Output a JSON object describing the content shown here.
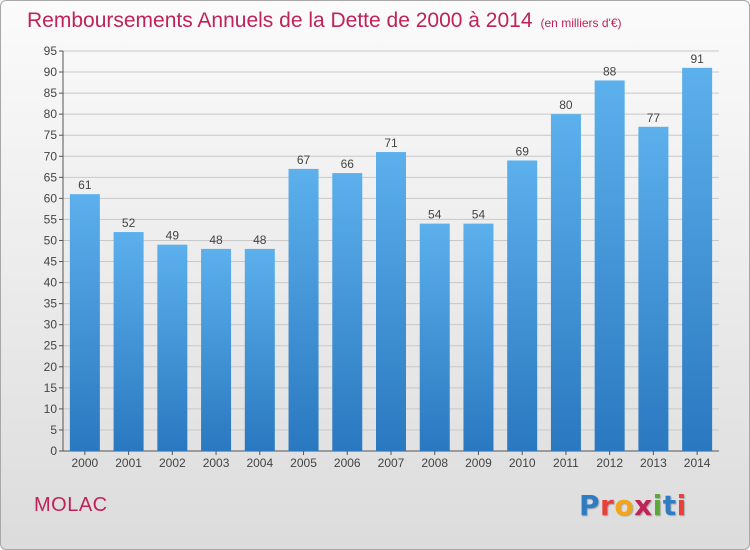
{
  "chart_title": "Remboursements Annuels de la Dette de 2000 à 2014",
  "chart_unit": "(en milliers d'€)",
  "commune": "MOLAC",
  "logo_text": "Proxiti",
  "colors": {
    "bar": "#3d8fd6",
    "bar_light": "#5cb0ec",
    "title": "#c0225a",
    "grid": "#c8c8c8"
  },
  "chart_data": {
    "type": "bar",
    "title": "Remboursements Annuels de la Dette de 2000 à 2014",
    "subtitle": "(en milliers d'€)",
    "xlabel": "",
    "ylabel": "",
    "ylim": [
      0,
      95
    ],
    "yticks": [
      0,
      5,
      10,
      15,
      20,
      25,
      30,
      35,
      40,
      45,
      50,
      55,
      60,
      65,
      70,
      75,
      80,
      85,
      90,
      95
    ],
    "grid": true,
    "categories": [
      "2000",
      "2001",
      "2002",
      "2003",
      "2004",
      "2005",
      "2006",
      "2007",
      "2008",
      "2009",
      "2010",
      "2011",
      "2012",
      "2013",
      "2014"
    ],
    "values": [
      61,
      52,
      49,
      48,
      48,
      67,
      66,
      71,
      54,
      54,
      69,
      80,
      88,
      77,
      91
    ]
  }
}
